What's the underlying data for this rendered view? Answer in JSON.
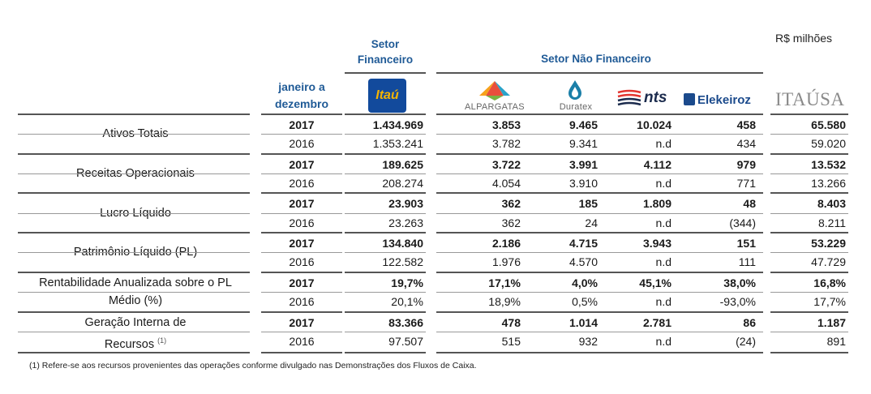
{
  "header": {
    "unit": "R$ milhões",
    "sector_financial": [
      "Setor",
      "Financeiro"
    ],
    "sector_non_financial": "Setor Não Financeiro",
    "period": [
      "janeiro a",
      "dezembro"
    ]
  },
  "logos": {
    "itau": "Itaú",
    "alpargatas": "ALPARGATAS",
    "duratex": "Duratex",
    "nts": "nts",
    "elekeiroz": "Elekeiroz",
    "itausa": "ITAÚSA"
  },
  "rows": [
    {
      "label": [
        "Ativos Totais"
      ],
      "label_sup": "",
      "y2017": {
        "year": "2017",
        "values": [
          "1.434.969",
          "3.853",
          "9.465",
          "10.024",
          "458",
          "65.580"
        ]
      },
      "y2016": {
        "year": "2016",
        "values": [
          "1.353.241",
          "3.782",
          "9.341",
          "n.d",
          "434",
          "59.020"
        ]
      }
    },
    {
      "label": [
        "Receitas Operacionais"
      ],
      "label_sup": "",
      "y2017": {
        "year": "2017",
        "values": [
          "189.625",
          "3.722",
          "3.991",
          "4.112",
          "979",
          "13.532"
        ]
      },
      "y2016": {
        "year": "2016",
        "values": [
          "208.274",
          "4.054",
          "3.910",
          "n.d",
          "771",
          "13.266"
        ]
      }
    },
    {
      "label": [
        "Lucro Líquido"
      ],
      "label_sup": "",
      "y2017": {
        "year": "2017",
        "values": [
          "23.903",
          "362",
          "185",
          "1.809",
          "48",
          "8.403"
        ]
      },
      "y2016": {
        "year": "2016",
        "values": [
          "23.263",
          "362",
          "24",
          "n.d",
          "(344)",
          "8.211"
        ]
      }
    },
    {
      "label": [
        "Patrimônio Líquido (PL)"
      ],
      "label_sup": "",
      "y2017": {
        "year": "2017",
        "values": [
          "134.840",
          "2.186",
          "4.715",
          "3.943",
          "151",
          "53.229"
        ]
      },
      "y2016": {
        "year": "2016",
        "values": [
          "122.582",
          "1.976",
          "4.570",
          "n.d",
          "111",
          "47.729"
        ]
      }
    },
    {
      "label": [
        "Rentabilidade Anualizada sobre o PL",
        "Médio (%)"
      ],
      "label_sup": "",
      "y2017": {
        "year": "2017",
        "values": [
          "19,7%",
          "17,1%",
          "4,0%",
          "45,1%",
          "38,0%",
          "16,8%"
        ]
      },
      "y2016": {
        "year": "2016",
        "values": [
          "20,1%",
          "18,9%",
          "0,5%",
          "n.d",
          "-93,0%",
          "17,7%"
        ]
      }
    },
    {
      "label": [
        "Geração Interna de",
        "Recursos"
      ],
      "label_sup": "(1)",
      "y2017": {
        "year": "2017",
        "values": [
          "83.366",
          "478",
          "1.014",
          "2.781",
          "86",
          "1.187"
        ]
      },
      "y2016": {
        "year": "2016",
        "values": [
          "97.507",
          "515",
          "932",
          "n.d",
          "(24)",
          "891"
        ]
      }
    }
  ],
  "footnote": "(1) Refere-se aos recursos provenientes das operações conforme divulgado nas Demonstrações dos Fluxos de Caixa."
}
